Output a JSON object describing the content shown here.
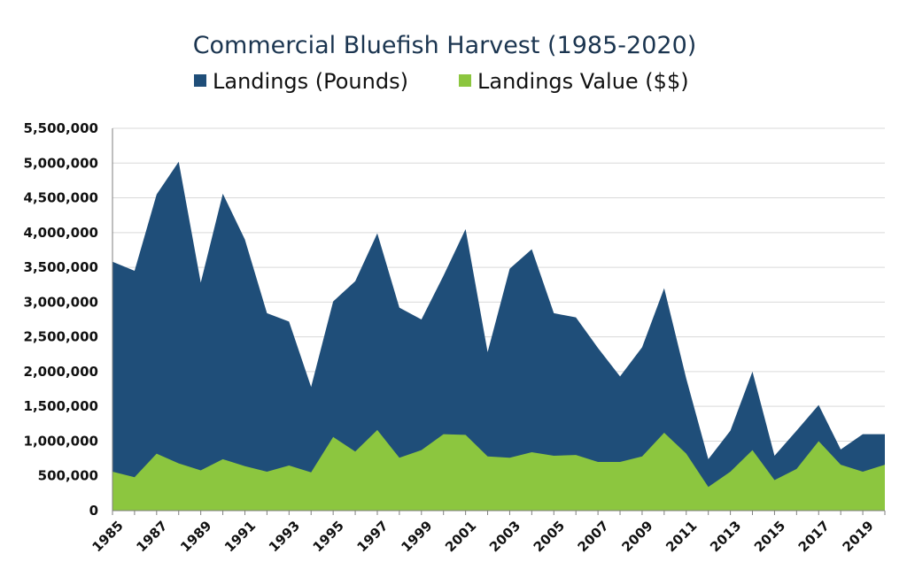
{
  "chart_data": {
    "type": "area",
    "title": "Commercial Bluefish Harvest (1985-2020)",
    "xlabel": "",
    "ylabel": "",
    "ylim": [
      0,
      5500000
    ],
    "y_ticks": [
      "0",
      "500,000",
      "1,000,000",
      "1,500,000",
      "2,000,000",
      "2,500,000",
      "3,000,000",
      "3,500,000",
      "4,000,000",
      "4,500,000",
      "5,000,000",
      "5,500,000"
    ],
    "x_tick_labels": [
      "1985",
      "1987",
      "1989",
      "1991",
      "1993",
      "1995",
      "1997",
      "1999",
      "2001",
      "2003",
      "2005",
      "2007",
      "2009",
      "2011",
      "2013",
      "2015",
      "2017",
      "2019"
    ],
    "legend_position": "top",
    "grid": true,
    "x": [
      1985,
      1986,
      1987,
      1988,
      1989,
      1990,
      1991,
      1992,
      1993,
      1994,
      1995,
      1996,
      1997,
      1998,
      1999,
      2000,
      2001,
      2002,
      2003,
      2004,
      2005,
      2006,
      2007,
      2008,
      2009,
      2010,
      2011,
      2012,
      2013,
      2014,
      2015,
      2016,
      2017,
      2018,
      2019,
      2020
    ],
    "series": [
      {
        "name": "Landings (Pounds)",
        "color": "#1f4e79",
        "values": [
          3580000,
          3450000,
          4550000,
          5020000,
          3280000,
          4560000,
          3900000,
          2840000,
          2720000,
          1780000,
          3010000,
          3300000,
          3990000,
          2920000,
          2750000,
          3380000,
          4050000,
          2280000,
          3480000,
          3760000,
          2840000,
          2780000,
          2340000,
          1930000,
          2350000,
          3200000,
          1900000,
          740000,
          1150000,
          2000000,
          790000,
          1150000,
          1520000,
          880000,
          1100000,
          1100000
        ]
      },
      {
        "name": "Landings Value ($$)",
        "color": "#8cc63f",
        "values": [
          560000,
          480000,
          820000,
          680000,
          580000,
          740000,
          640000,
          560000,
          650000,
          550000,
          1060000,
          850000,
          1160000,
          760000,
          870000,
          1100000,
          1090000,
          780000,
          760000,
          840000,
          790000,
          800000,
          700000,
          700000,
          780000,
          1120000,
          820000,
          340000,
          560000,
          870000,
          440000,
          600000,
          1000000,
          660000,
          560000,
          660000
        ]
      }
    ]
  }
}
